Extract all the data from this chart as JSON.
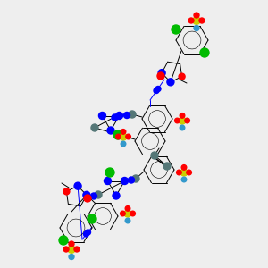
{
  "bg_color": "#eeeeee",
  "figsize": [
    3.0,
    3.0
  ],
  "dpi": 100,
  "bond_color": "#000000",
  "bond_lw": 0.7,
  "atom_colors": {
    "N": "#0000ff",
    "O": "#ff0000",
    "S": "#cccc00",
    "Cl": "#00bb00",
    "Na": "#3399cc",
    "C_gray": "#557777"
  },
  "scale": 1.0
}
